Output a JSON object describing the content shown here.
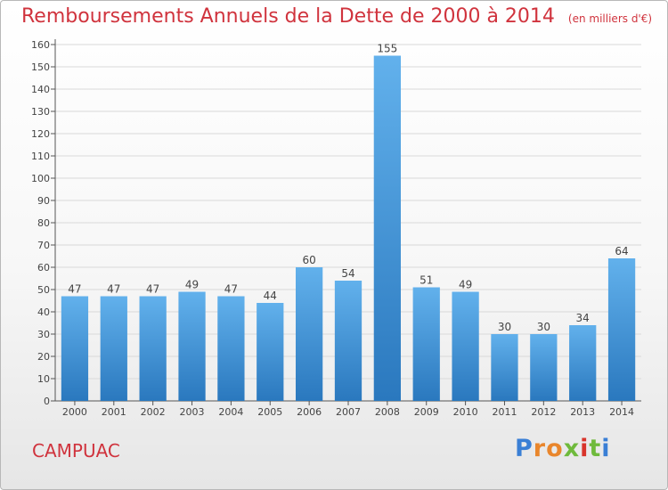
{
  "header": {
    "title": "Remboursements Annuels de la Dette de 2000 à 2014",
    "subtitle": "(en milliers d'€)"
  },
  "footer": {
    "commune": "CAMPUAC",
    "logo_text": "Proxiti",
    "logo_colors": [
      "#3a7fd5",
      "#e9862c",
      "#e9862c",
      "#6fba3c",
      "#d8342b",
      "#6fba3c",
      "#3a7fd5"
    ]
  },
  "colors": {
    "title": "#d0333d",
    "bar_top": "#62b1ec",
    "bar_bottom": "#2a78be",
    "grid": "#d9d9d9"
  },
  "chart_data": {
    "type": "bar",
    "categories": [
      "2000",
      "2001",
      "2002",
      "2003",
      "2004",
      "2005",
      "2006",
      "2007",
      "2008",
      "2009",
      "2010",
      "2011",
      "2012",
      "2013",
      "2014"
    ],
    "values": [
      47,
      47,
      47,
      49,
      47,
      44,
      60,
      54,
      155,
      51,
      49,
      30,
      30,
      34,
      64
    ],
    "ylim": [
      0,
      160
    ],
    "yticks": [
      0,
      10,
      20,
      30,
      40,
      50,
      60,
      70,
      80,
      90,
      100,
      110,
      120,
      130,
      140,
      150,
      160
    ],
    "grid": true,
    "data_labels": true
  }
}
